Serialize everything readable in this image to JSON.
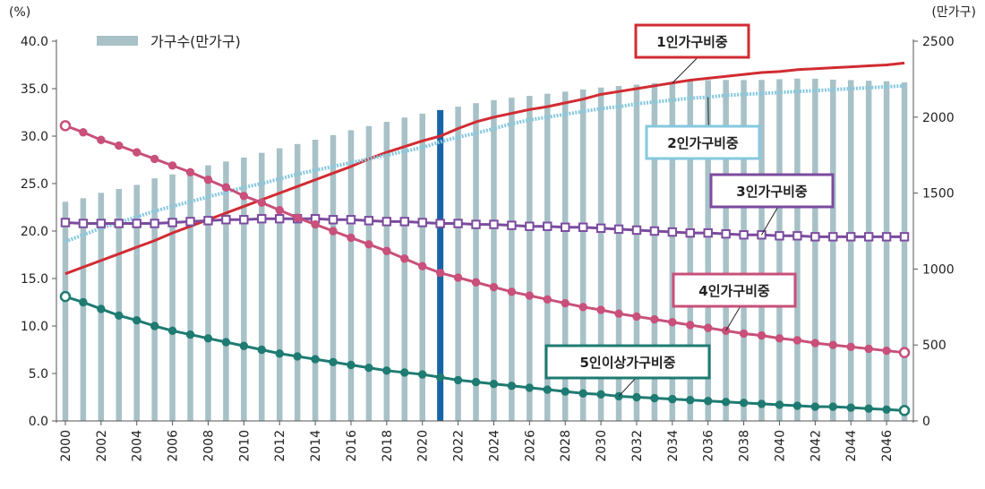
{
  "chart_data": {
    "type": "bar+line",
    "left_axis_unit": "(%)",
    "right_axis_unit": "(만가구)",
    "left_ylim": [
      0,
      40
    ],
    "right_ylim": [
      0,
      2500
    ],
    "left_ticks": [
      "0.0",
      "5.0",
      "10.0",
      "15.0",
      "20.0",
      "25.0",
      "30.0",
      "35.0",
      "40.0"
    ],
    "right_ticks": [
      "0",
      "500",
      "1000",
      "1500",
      "2000",
      "2500"
    ],
    "x_tick_labels": [
      "2000",
      "2002",
      "2004",
      "2006",
      "2008",
      "2010",
      "2012",
      "2014",
      "2016",
      "2018",
      "2020",
      "2022",
      "2024",
      "2026",
      "2028",
      "2030",
      "2032",
      "2034",
      "2036",
      "2038",
      "2040",
      "2042",
      "2044",
      "2046"
    ],
    "years": [
      2000,
      2001,
      2002,
      2003,
      2004,
      2005,
      2006,
      2007,
      2008,
      2009,
      2010,
      2011,
      2012,
      2013,
      2014,
      2015,
      2016,
      2017,
      2018,
      2019,
      2020,
      2021,
      2022,
      2023,
      2024,
      2025,
      2026,
      2027,
      2028,
      2029,
      2030,
      2031,
      2032,
      2033,
      2034,
      2035,
      2036,
      2037,
      2038,
      2039,
      2040,
      2041,
      2042,
      2043,
      2044,
      2045,
      2046,
      2047
    ],
    "highlight_year": 2021,
    "bar_series": {
      "name": "가구수(만가구)",
      "color": "#a7c1c7",
      "values": [
        1443,
        1466,
        1502,
        1527,
        1554,
        1597,
        1623,
        1648,
        1683,
        1708,
        1734,
        1765,
        1795,
        1823,
        1851,
        1882,
        1914,
        1941,
        1969,
        1997,
        2023,
        2048,
        2069,
        2092,
        2112,
        2128,
        2140,
        2154,
        2168,
        2182,
        2195,
        2205,
        2214,
        2224,
        2232,
        2238,
        2244,
        2245,
        2244,
        2245,
        2250,
        2254,
        2253,
        2247,
        2244,
        2240,
        2236,
        2229
      ]
    },
    "line_series": [
      {
        "name": "1인가구비중",
        "color": "#d22b32",
        "marker": "none",
        "values": [
          15.5,
          16.2,
          16.9,
          17.6,
          18.3,
          19.0,
          19.8,
          20.5,
          21.2,
          21.9,
          22.6,
          23.3,
          24.0,
          24.7,
          25.4,
          26.1,
          26.8,
          27.6,
          28.3,
          28.9,
          29.5,
          30.0,
          30.8,
          31.5,
          32.0,
          32.4,
          32.8,
          33.1,
          33.5,
          33.9,
          34.4,
          34.7,
          35.0,
          35.3,
          35.6,
          35.9,
          36.1,
          36.3,
          36.5,
          36.7,
          36.8,
          37.0,
          37.1,
          37.2,
          37.3,
          37.4,
          37.5,
          37.7
        ]
      },
      {
        "name": "2인가구비중",
        "color": "#86c8df",
        "marker": "none",
        "values": [
          18.9,
          19.6,
          20.3,
          20.9,
          21.5,
          22.1,
          22.6,
          23.1,
          23.6,
          24.1,
          24.6,
          25.0,
          25.5,
          26.0,
          26.4,
          26.8,
          27.2,
          27.6,
          28.0,
          28.4,
          28.8,
          29.4,
          29.9,
          30.3,
          30.8,
          31.3,
          31.7,
          32.0,
          32.3,
          32.6,
          32.9,
          33.1,
          33.4,
          33.6,
          33.8,
          34.0,
          34.1,
          34.3,
          34.4,
          34.5,
          34.6,
          34.7,
          34.8,
          34.9,
          35.0,
          35.1,
          35.2,
          35.3
        ]
      },
      {
        "name": "3인가구비중",
        "color": "#7b4b9e",
        "marker": "square",
        "values": [
          20.9,
          20.8,
          20.8,
          20.8,
          20.8,
          20.8,
          20.9,
          21.0,
          21.1,
          21.2,
          21.2,
          21.3,
          21.3,
          21.3,
          21.3,
          21.2,
          21.2,
          21.1,
          21.0,
          21.0,
          20.9,
          20.8,
          20.8,
          20.7,
          20.7,
          20.6,
          20.5,
          20.5,
          20.4,
          20.4,
          20.3,
          20.2,
          20.1,
          20.0,
          19.9,
          19.8,
          19.8,
          19.7,
          19.6,
          19.6,
          19.5,
          19.5,
          19.4,
          19.4,
          19.4,
          19.4,
          19.4,
          19.4
        ]
      },
      {
        "name": "4인가구비중",
        "color": "#c8507a",
        "marker": "circle",
        "values": [
          31.1,
          30.4,
          29.6,
          29.0,
          28.3,
          27.6,
          26.9,
          26.2,
          25.4,
          24.6,
          23.7,
          23.0,
          22.2,
          21.4,
          20.7,
          20.0,
          19.3,
          18.6,
          17.9,
          17.1,
          16.3,
          15.6,
          15.1,
          14.6,
          14.1,
          13.6,
          13.2,
          12.8,
          12.4,
          12.0,
          11.7,
          11.3,
          11.0,
          10.7,
          10.4,
          10.1,
          9.8,
          9.5,
          9.2,
          9.0,
          8.7,
          8.5,
          8.2,
          8.0,
          7.8,
          7.6,
          7.4,
          7.2
        ]
      },
      {
        "name": "5인이상가구비중",
        "color": "#1e7b72",
        "marker": "circle",
        "values": [
          13.1,
          12.5,
          11.8,
          11.1,
          10.6,
          10.0,
          9.5,
          9.1,
          8.7,
          8.3,
          7.9,
          7.5,
          7.1,
          6.8,
          6.5,
          6.2,
          5.9,
          5.6,
          5.3,
          5.1,
          4.9,
          4.6,
          4.3,
          4.1,
          3.9,
          3.7,
          3.5,
          3.3,
          3.1,
          2.9,
          2.8,
          2.6,
          2.5,
          2.4,
          2.3,
          2.2,
          2.1,
          2.0,
          1.9,
          1.8,
          1.7,
          1.6,
          1.5,
          1.5,
          1.4,
          1.3,
          1.2,
          1.1
        ]
      }
    ],
    "legend": {
      "label": "가구수(만가구)",
      "placement": "top-left"
    },
    "series_labels": [
      {
        "text": "1인가구비중",
        "series": "1인가구비중",
        "point_year": 2034
      },
      {
        "text": "2인가구비중",
        "series": "2인가구비중",
        "point_year": 2036
      },
      {
        "text": "3인가구비중",
        "series": "3인가구비중",
        "point_year": 2039
      },
      {
        "text": "4인가구비중",
        "series": "4인가구비중",
        "point_year": 2037
      },
      {
        "text": "5인이상가구비중",
        "series": "5인이상가구비중",
        "point_year": 2031
      }
    ]
  }
}
